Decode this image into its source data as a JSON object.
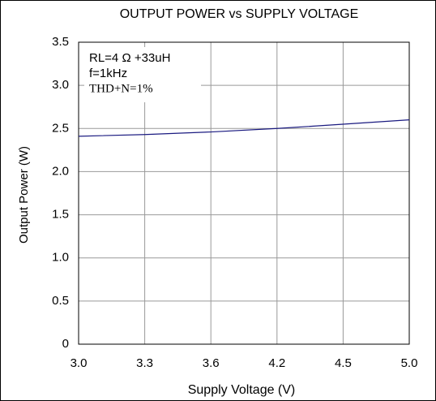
{
  "chart_data": {
    "type": "line",
    "title": "OUTPUT POWER vs SUPPLY VOLTAGE",
    "x_label": "Supply Voltage (V)",
    "y_label": "Output Power (W)",
    "annotations": [
      "RL=4 Ω +33uH",
      "f=1kHz",
      "THD+N=1%"
    ],
    "categories": [
      "3.0",
      "3.3",
      "3.6",
      "4.2",
      "4.5",
      "5.0"
    ],
    "series": [
      {
        "name": "THD+N=1%",
        "color": "#1a1a80",
        "values": [
          2.41,
          2.43,
          2.46,
          2.5,
          2.55,
          2.6
        ]
      }
    ],
    "ylim": [
      0,
      3.5
    ],
    "yticks": [
      0,
      0.5,
      {
        "value": 1,
        "label": "1.0"
      },
      1.5,
      {
        "value": 2,
        "label": "2.0"
      },
      2.5,
      {
        "value": 3,
        "label": "3.0"
      },
      3.5
    ],
    "grid": true
  }
}
